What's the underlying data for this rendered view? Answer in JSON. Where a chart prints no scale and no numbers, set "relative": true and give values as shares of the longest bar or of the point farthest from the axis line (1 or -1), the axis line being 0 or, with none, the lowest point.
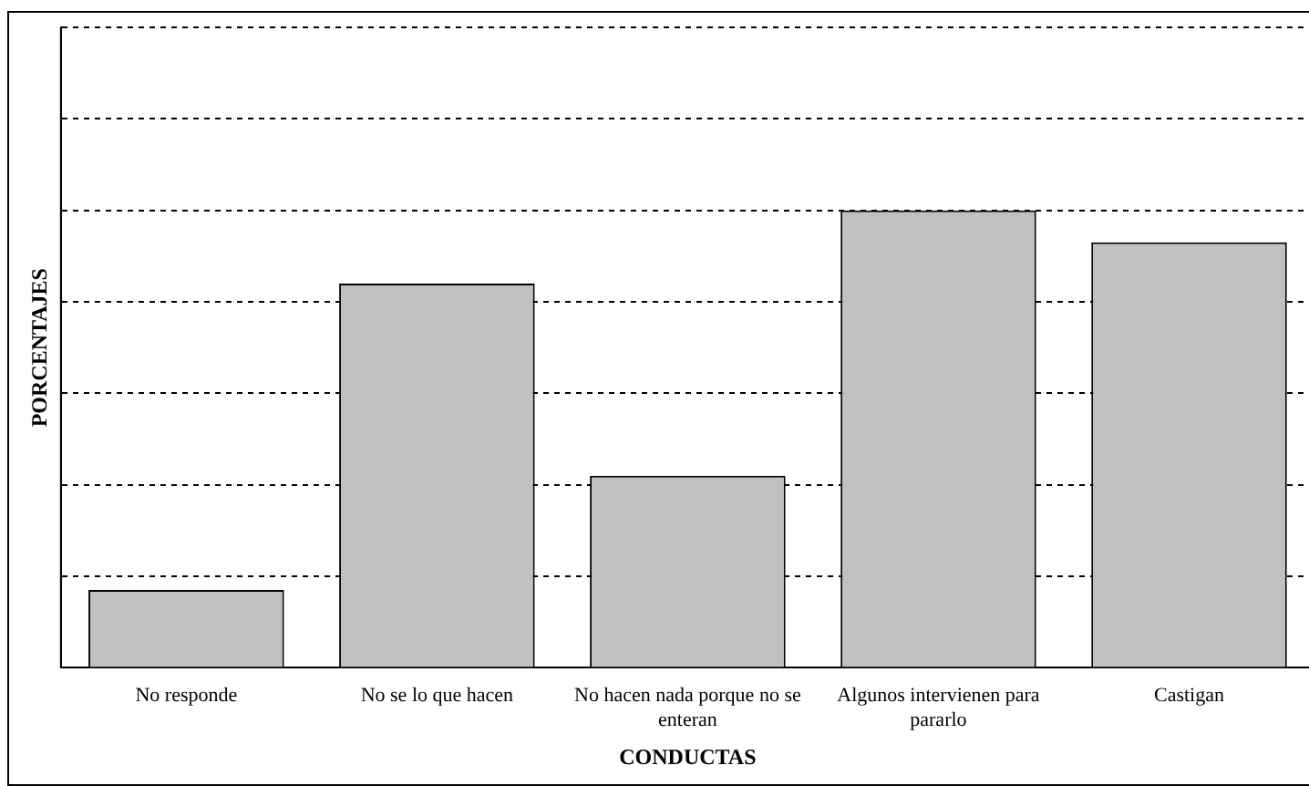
{
  "chart_data": {
    "type": "bar",
    "xlabel": "CONDUCTAS",
    "ylabel": "PORCENTAJES",
    "categories": [
      "No responde",
      "No se lo que hacen",
      "No hacen nada porque no se enteran",
      "Algunos intervienen para pararlo",
      "Castigan"
    ],
    "values": [
      0.17,
      0.84,
      0.42,
      1,
      0.93
    ],
    "color": "#c0c0c0",
    "relative": true,
    "grid": "y",
    "legend": false
  }
}
